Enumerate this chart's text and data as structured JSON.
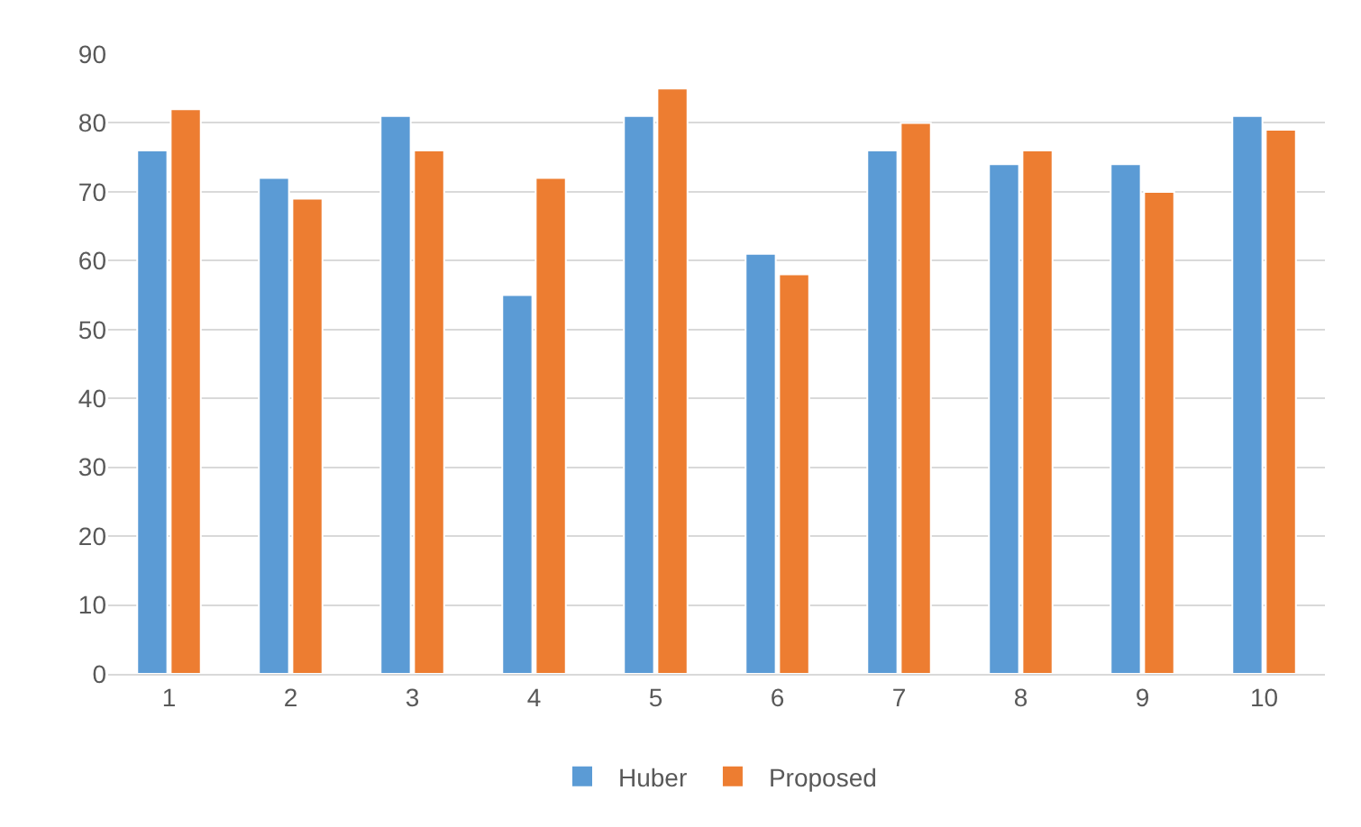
{
  "chart_data": {
    "type": "bar",
    "categories": [
      "1",
      "2",
      "3",
      "4",
      "5",
      "6",
      "7",
      "8",
      "9",
      "10"
    ],
    "series": [
      {
        "name": "Huber",
        "color": "#5b9bd5",
        "values": [
          76,
          72,
          81,
          55,
          81,
          61,
          76,
          74,
          74,
          81
        ]
      },
      {
        "name": "Proposed",
        "color": "#ed7d31",
        "values": [
          82,
          69,
          76,
          72,
          85,
          58,
          80,
          76,
          70,
          79
        ]
      }
    ],
    "ylim": [
      0,
      90
    ],
    "yticks": [
      0,
      10,
      20,
      30,
      40,
      50,
      60,
      70,
      80,
      90
    ],
    "grid": "y",
    "legend": "bottom"
  }
}
